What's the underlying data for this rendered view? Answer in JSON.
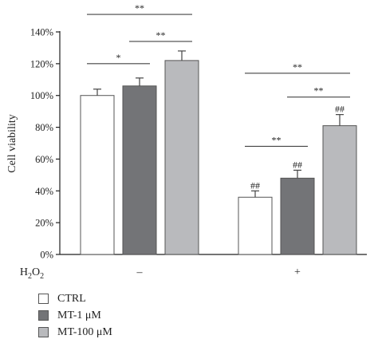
{
  "chart_data": {
    "type": "bar",
    "ylabel": "Cell viability",
    "ylim": [
      0,
      140
    ],
    "y_ticks": [
      "0%",
      "20%",
      "40%",
      "60%",
      "80%",
      "100%",
      "120%",
      "140%"
    ],
    "group_factor_label": "H2O2",
    "groups": [
      "–",
      "+"
    ],
    "series": [
      {
        "name": "CTRL",
        "color": "#ffffff",
        "values": [
          100,
          36
        ],
        "errors": [
          4,
          4
        ],
        "labels": [
          "",
          "##"
        ]
      },
      {
        "name": "MT-1 μM",
        "color": "#737477",
        "values": [
          106,
          48
        ],
        "errors": [
          5,
          5
        ],
        "labels": [
          "",
          "##"
        ]
      },
      {
        "name": "MT-100 μM",
        "color": "#b9babd",
        "values": [
          122,
          81
        ],
        "errors": [
          6,
          7
        ],
        "labels": [
          "",
          "##"
        ]
      }
    ],
    "comparisons": [
      {
        "group": 0,
        "from": 0,
        "to": 2,
        "level": 151,
        "label": "**"
      },
      {
        "group": 0,
        "from": 0,
        "to": 1,
        "level": 120,
        "label": "*"
      },
      {
        "group": 0,
        "from": 1,
        "to": 2,
        "level": 134,
        "label": "**"
      },
      {
        "group": 1,
        "from": 0,
        "to": 2,
        "level": 114,
        "label": "**"
      },
      {
        "group": 1,
        "from": 0,
        "to": 1,
        "level": 68,
        "label": "**"
      },
      {
        "group": 1,
        "from": 1,
        "to": 2,
        "level": 99,
        "label": "**"
      }
    ],
    "grid": false,
    "legend_position": "bottom-left"
  }
}
